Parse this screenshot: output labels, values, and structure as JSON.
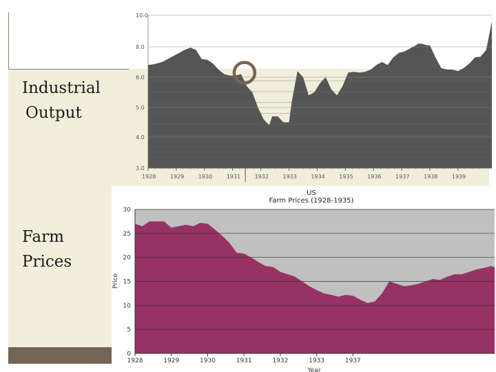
{
  "labels": {
    "industrial_line1": "Industrial",
    "industrial_line2": "Output",
    "farm_line1": "Farm",
    "farm_line2": "Prices"
  },
  "colors": {
    "industrial_fill": "#555555",
    "farm_fill": "#963264",
    "farm_background": "#c0c0c0",
    "panel": "#f1efdc",
    "footer": "#746456",
    "marker": "#7a6350"
  },
  "chart_data": [
    {
      "type": "area",
      "title": "",
      "xlabel": "",
      "ylabel": "",
      "xlim": [
        1928,
        1940.2
      ],
      "ylim": [
        3,
        10
      ],
      "x_ticks": [
        "1928",
        "1929",
        "1930",
        "1931",
        "1932",
        "1933",
        "1934",
        "1935",
        "1936",
        "1937",
        "1938",
        "1939"
      ],
      "y_ticks": [
        "3.0",
        "4.0",
        "5.0",
        "6.0",
        "8.0",
        "10.0"
      ],
      "series": [
        {
          "name": "",
          "x": [
            1928,
            1928.2,
            1928.5,
            1928.8,
            1929.0,
            1929.3,
            1929.5,
            1929.7,
            1929.9,
            1930.1,
            1930.3,
            1930.5,
            1930.7,
            1930.9,
            1931.1,
            1931.3,
            1931.5,
            1931.7,
            1931.9,
            1932.1,
            1932.3,
            1932.4,
            1932.6,
            1932.8,
            1933.0,
            1933.1,
            1933.3,
            1933.5,
            1933.7,
            1933.9,
            1934.1,
            1934.3,
            1934.5,
            1934.7,
            1934.9,
            1935.1,
            1935.3,
            1935.5,
            1935.7,
            1935.9,
            1936.1,
            1936.3,
            1936.5,
            1936.7,
            1936.9,
            1937.1,
            1937.3,
            1937.5,
            1937.6,
            1937.7,
            1937.8,
            1937.9,
            1938.0,
            1938.2,
            1938.4,
            1938.6,
            1938.8,
            1939.0,
            1939.2,
            1939.4,
            1939.6,
            1939.8,
            1940.0,
            1940.2
          ],
          "values": [
            6.8,
            6.85,
            7.0,
            7.3,
            7.5,
            7.8,
            7.95,
            7.8,
            7.2,
            7.15,
            6.9,
            6.5,
            6.2,
            6.1,
            6.1,
            6.2,
            5.7,
            5.5,
            5.0,
            4.6,
            4.4,
            4.7,
            4.7,
            4.5,
            4.5,
            5.2,
            6.4,
            6.0,
            5.4,
            5.5,
            5.8,
            6.0,
            5.6,
            5.4,
            5.7,
            6.3,
            6.35,
            6.3,
            6.35,
            6.5,
            6.8,
            7.0,
            6.8,
            7.3,
            7.6,
            7.7,
            7.9,
            8.1,
            8.2,
            8.2,
            8.15,
            8.1,
            8.1,
            7.3,
            6.6,
            6.5,
            6.5,
            6.4,
            6.6,
            6.9,
            7.3,
            7.35,
            7.8,
            9.6
          ]
        }
      ]
    },
    {
      "type": "area",
      "title": "US\nFarm Prices (1928-1935)",
      "xlabel": "Year",
      "ylabel": "Price",
      "xlim": [
        1928,
        1937.9
      ],
      "ylim": [
        0,
        30
      ],
      "x_ticks": [
        "1928",
        "1929",
        "1930",
        "1931",
        "1932",
        "1933",
        "1937"
      ],
      "y_ticks": [
        "0",
        "5",
        "10",
        "15",
        "20",
        "25",
        "30"
      ],
      "grid": true,
      "series": [
        {
          "name": "",
          "x": [
            1928,
            1928.2,
            1928.4,
            1928.6,
            1928.8,
            1929.0,
            1929.2,
            1929.4,
            1929.6,
            1929.8,
            1930.0,
            1930.2,
            1930.4,
            1930.6,
            1930.8,
            1931.0,
            1931.2,
            1931.4,
            1931.6,
            1931.8,
            1932.0,
            1932.2,
            1932.4,
            1932.6,
            1932.8,
            1933.0,
            1933.2,
            1933.4,
            1933.6,
            1933.8,
            1934.0,
            1934.2,
            1934.4,
            1934.6,
            1934.8,
            1935.0,
            1935.2,
            1935.4,
            1935.6,
            1935.8,
            1936.0,
            1936.2,
            1936.4,
            1936.6,
            1936.8,
            1937.0,
            1937.2,
            1937.4,
            1937.6,
            1937.8,
            1937.9
          ],
          "values": [
            27,
            26.5,
            27.5,
            27.5,
            27.5,
            26.2,
            26.5,
            26.8,
            26.5,
            27.2,
            27.0,
            25.8,
            24.5,
            23.0,
            21.0,
            20.8,
            20.0,
            19.0,
            18.2,
            18.0,
            17.0,
            16.5,
            16.0,
            15.0,
            14.0,
            13.2,
            12.5,
            12.2,
            11.8,
            12.2,
            12.0,
            11.2,
            10.5,
            10.8,
            12.5,
            15.0,
            14.5,
            14.0,
            14.2,
            14.5,
            15.0,
            15.5,
            15.3,
            16.0,
            16.5,
            16.5,
            17.0,
            17.5,
            17.8,
            18.2,
            18.0
          ]
        }
      ]
    }
  ]
}
